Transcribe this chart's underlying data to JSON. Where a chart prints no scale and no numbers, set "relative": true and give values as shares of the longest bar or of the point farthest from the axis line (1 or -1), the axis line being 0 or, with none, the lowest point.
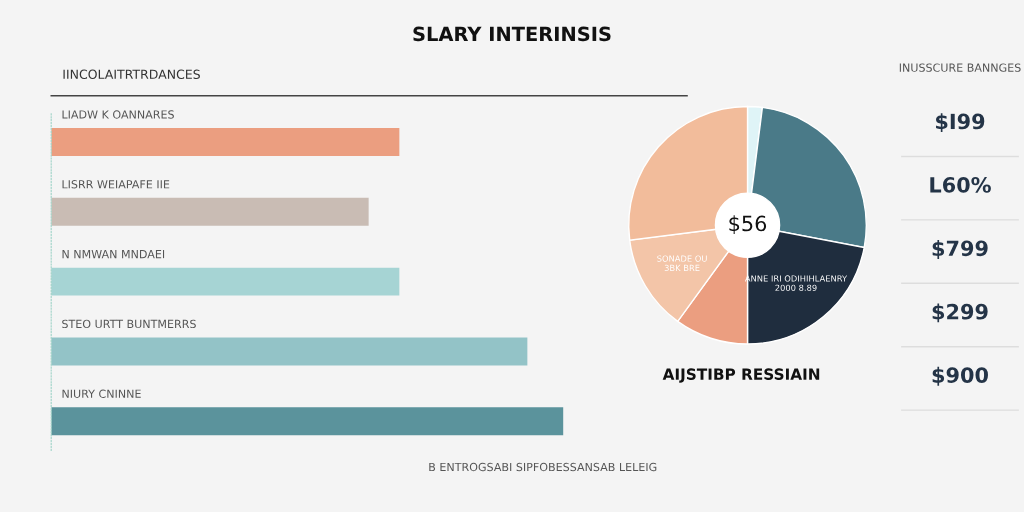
{
  "chart_data": [
    {
      "type": "bar",
      "title": "SLARY INTERINSIS",
      "subtitle": "IINCOLAITRTRDANCES",
      "orientation": "horizontal",
      "relative": true,
      "categories": [
        "LIADW K OANNARES",
        "LISRR WEIAPAFE IIE",
        "N NMWAN MNDAEI",
        "STEO URTT BUNTMERRS",
        "NIURY CNINNE"
      ],
      "values": [
        0.68,
        0.62,
        0.68,
        0.93,
        1.0
      ],
      "colors": [
        "#eb9e80",
        "#c9bcb4",
        "#a6d4d4",
        "#93c3c7",
        "#5b939c"
      ],
      "annotations": [
        "B ENTROGSABI SIPFOBESSANSAB LELEIG"
      ]
    },
    {
      "type": "donut",
      "categories": [
        null,
        null,
        "ANNE IRI ODIHIHLAENRY\n2000 8.89",
        null,
        "SONADE OU\n3BK BRE",
        null
      ],
      "values": [
        2,
        26,
        22,
        10,
        13,
        27
      ],
      "colors": [
        "#dff4f7",
        "#4a7a88",
        "#1f2d3e",
        "#eb9e80",
        "#f3c5a8",
        "#f2bc9b"
      ],
      "annotations": [
        "$56",
        "AIJSTIBP RESSIAIN"
      ]
    },
    {
      "type": "other",
      "title": "INUSSCURE BANNGES",
      "annotations": [
        "$I99",
        "L60%",
        "$799",
        "$299",
        "$900"
      ]
    }
  ]
}
